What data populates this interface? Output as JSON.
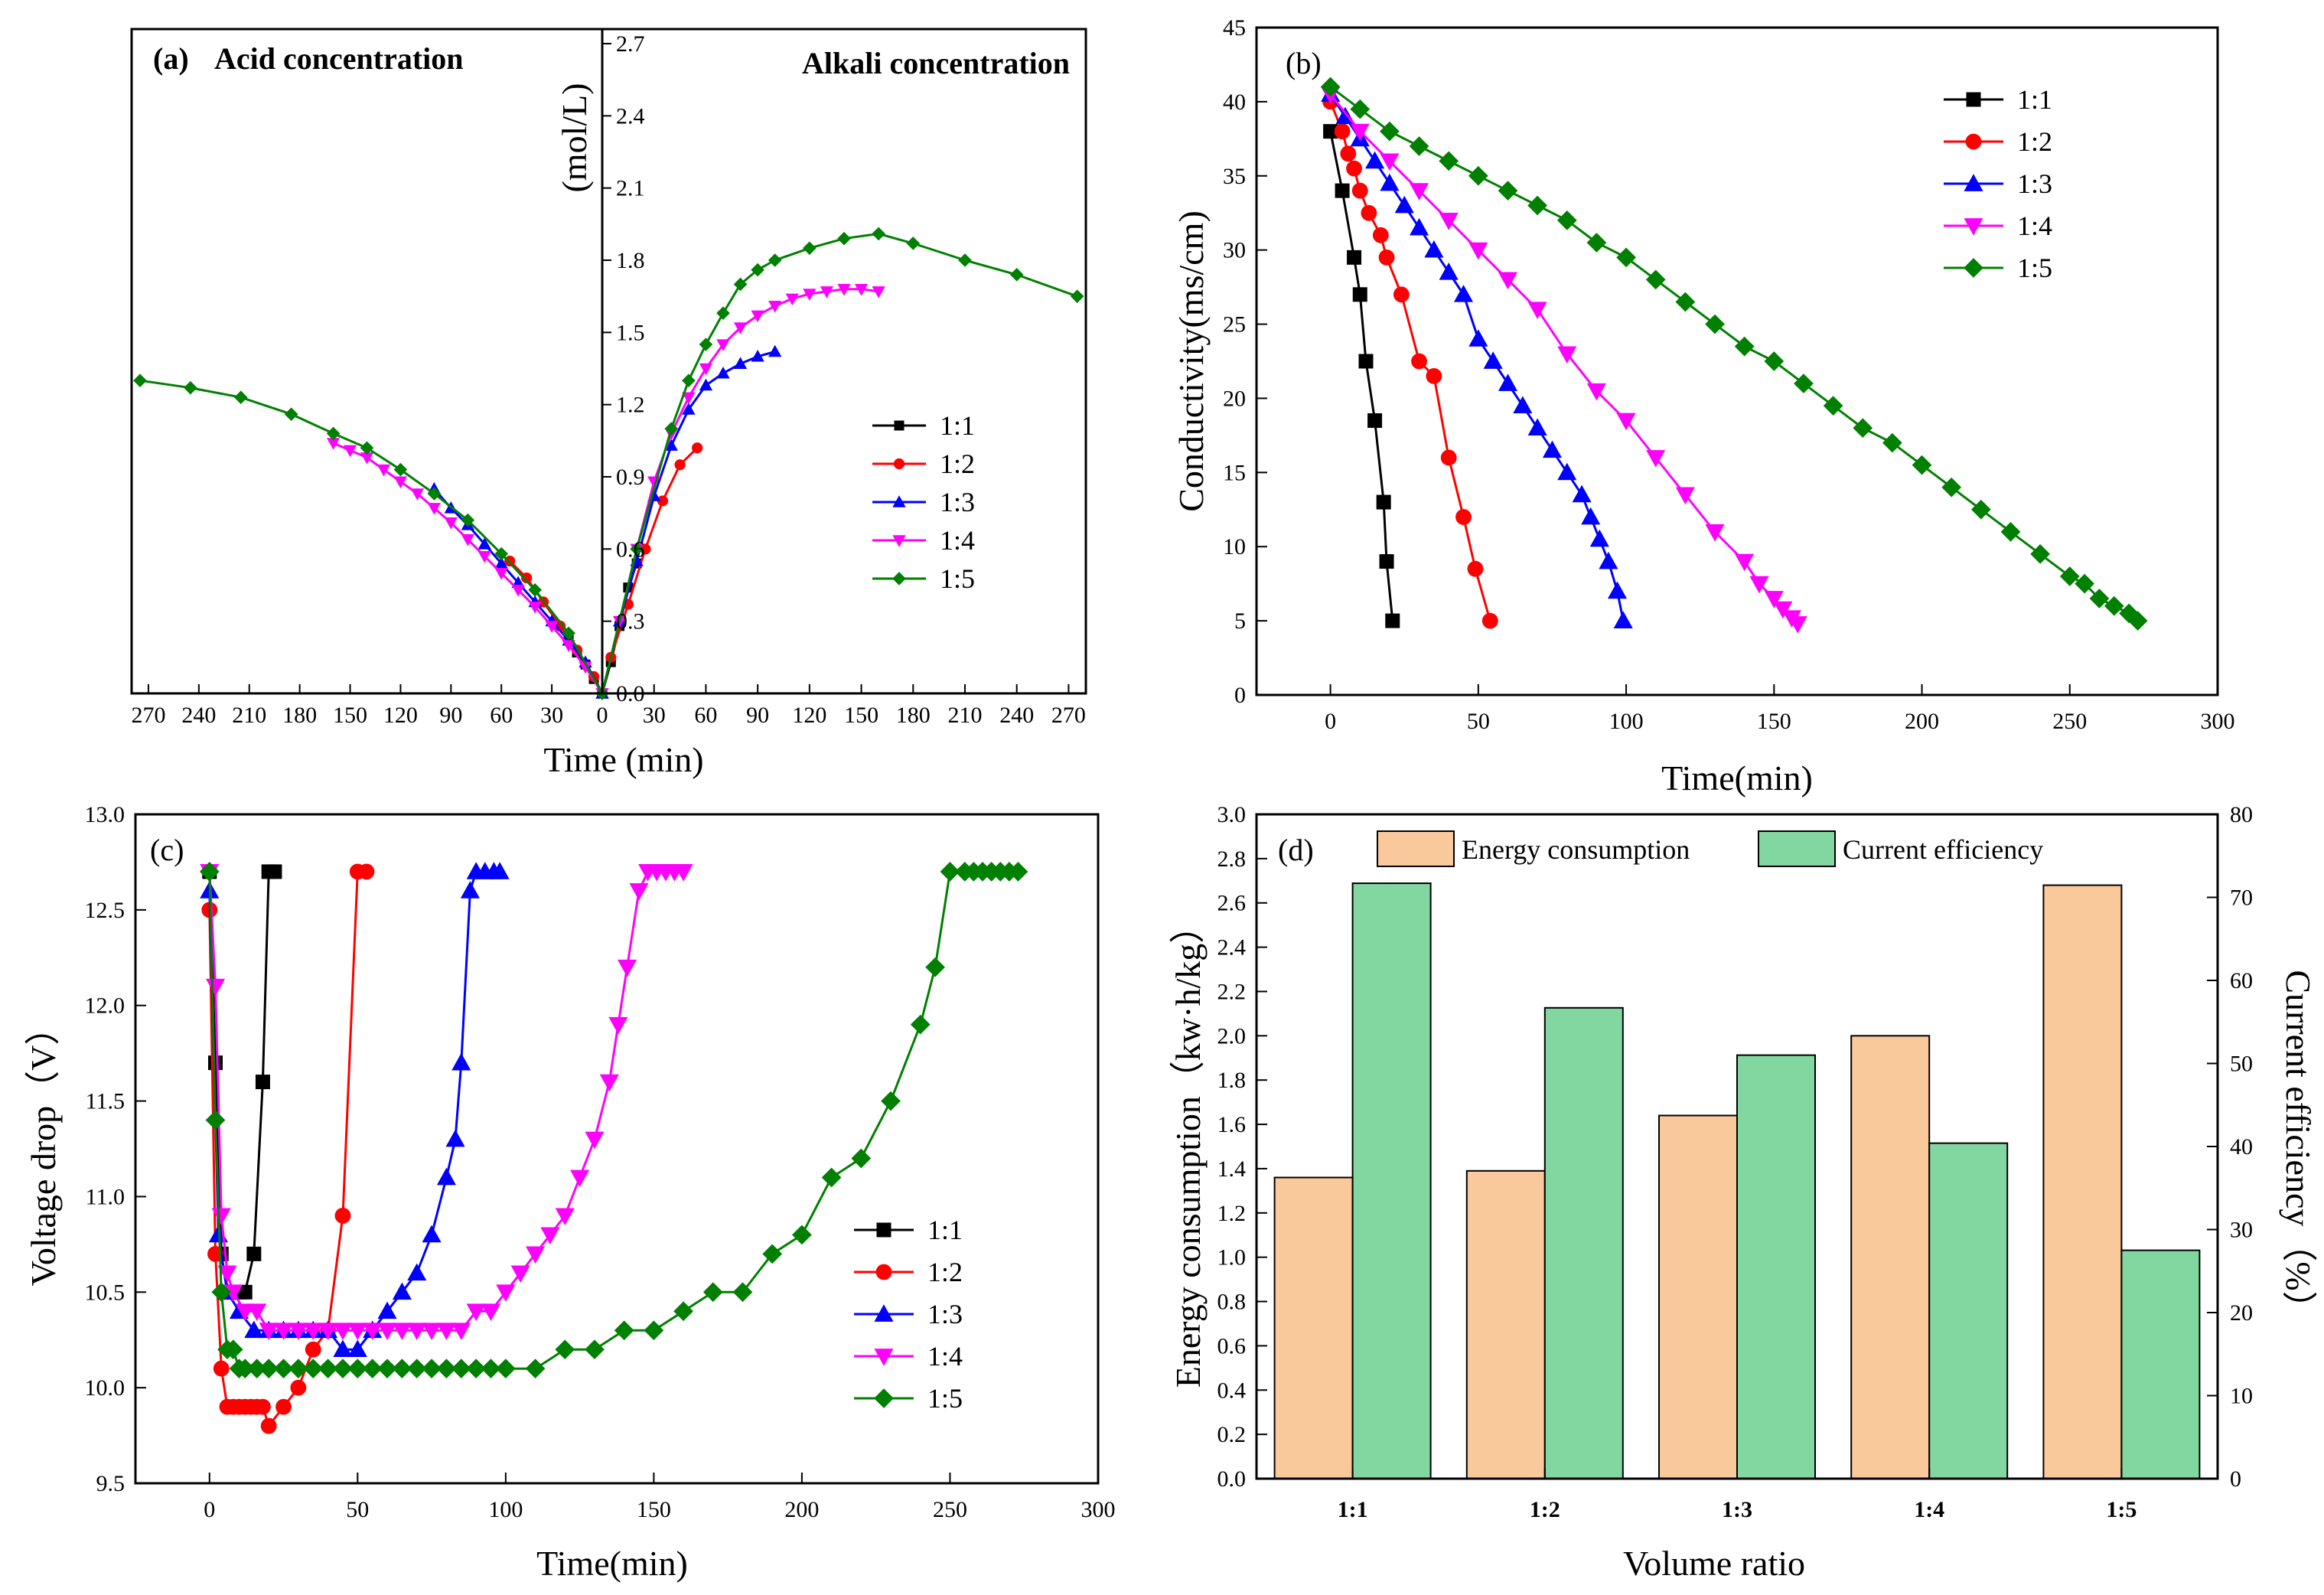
{
  "colors": {
    "1:1": "#000000",
    "1:2": "#ff0000",
    "1:3": "#0000ff",
    "1:4": "#ff00ff",
    "1:5": "#008000",
    "energy": "#f9c89b",
    "efficiency": "#82d6a0"
  },
  "chart_data": [
    {
      "type": "line",
      "panel": "(a)",
      "title_left": "Acid concentration",
      "title_right": "Alkali concentration",
      "xlabel": "Time (min)",
      "ylabel": "(mol/L)",
      "xlim": [
        -280,
        280
      ],
      "ylim": [
        0,
        2.85
      ],
      "x_ticks": [
        270,
        240,
        210,
        180,
        150,
        120,
        90,
        60,
        30,
        0,
        30,
        60,
        90,
        120,
        150,
        180,
        210,
        240,
        270
      ],
      "y_ticks": [
        "0.0",
        "0.3",
        "0.6",
        "0.9",
        "1.2",
        "1.5",
        "1.8",
        "2.1",
        "2.4",
        "2.7"
      ],
      "marker_step": 1,
      "series": [
        {
          "name": "1:1",
          "marker": "square",
          "acid": {
            "t": [
              20,
              15,
              10,
              5,
              0
            ],
            "c": [
              0.23,
              0.17,
              0.12,
              0.06,
              0
            ]
          },
          "alkali": {
            "t": [
              0,
              5,
              10,
              15,
              20
            ],
            "c": [
              0,
              0.13,
              0.28,
              0.44,
              0.54
            ]
          }
        },
        {
          "name": "1:2",
          "marker": "circle",
          "acid": {
            "t": [
              55,
              45,
              35,
              25,
              15,
              5,
              0
            ],
            "c": [
              0.55,
              0.48,
              0.38,
              0.28,
              0.18,
              0.07,
              0
            ]
          },
          "alkali": {
            "t": [
              0,
              5,
              15,
              25,
              35,
              45,
              55
            ],
            "c": [
              0,
              0.15,
              0.37,
              0.6,
              0.8,
              0.95,
              1.02
            ]
          }
        },
        {
          "name": "1:3",
          "marker": "triangle-up",
          "acid": {
            "t": [
              100,
              90,
              80,
              70,
              60,
              50,
              40,
              30,
              20,
              10,
              0
            ],
            "c": [
              0.85,
              0.77,
              0.7,
              0.62,
              0.54,
              0.46,
              0.38,
              0.3,
              0.22,
              0.13,
              0
            ]
          },
          "alkali": {
            "t": [
              0,
              10,
              20,
              30,
              40,
              50,
              60,
              70,
              80,
              90,
              100
            ],
            "c": [
              0,
              0.3,
              0.55,
              0.82,
              1.03,
              1.18,
              1.28,
              1.33,
              1.37,
              1.4,
              1.42
            ]
          }
        },
        {
          "name": "1:4",
          "marker": "triangle-down",
          "acid": {
            "t": [
              160,
              150,
              140,
              130,
              120,
              110,
              100,
              90,
              80,
              70,
              60,
              50,
              40,
              30,
              20,
              10,
              0
            ],
            "c": [
              1.04,
              1.01,
              0.98,
              0.93,
              0.88,
              0.83,
              0.77,
              0.71,
              0.64,
              0.57,
              0.5,
              0.43,
              0.36,
              0.28,
              0.2,
              0.11,
              0
            ]
          },
          "alkali": {
            "t": [
              0,
              10,
              20,
              30,
              40,
              50,
              60,
              70,
              80,
              90,
              100,
              110,
              120,
              130,
              140,
              150,
              160
            ],
            "c": [
              0,
              0.3,
              0.6,
              0.88,
              1.08,
              1.23,
              1.35,
              1.45,
              1.52,
              1.57,
              1.61,
              1.64,
              1.66,
              1.67,
              1.68,
              1.68,
              1.67
            ]
          }
        },
        {
          "name": "1:5",
          "marker": "diamond",
          "acid": {
            "t": [
              275,
              245,
              215,
              185,
              160,
              140,
              120,
              100,
              80,
              60,
              40,
              20,
              0
            ],
            "c": [
              1.3,
              1.27,
              1.23,
              1.16,
              1.08,
              1.02,
              0.93,
              0.83,
              0.72,
              0.58,
              0.43,
              0.25,
              0
            ]
          },
          "alkali": {
            "t": [
              0,
              20,
              40,
              50,
              60,
              70,
              80,
              90,
              100,
              120,
              140,
              160,
              180,
              210,
              240,
              275
            ],
            "c": [
              0,
              0.6,
              1.1,
              1.3,
              1.45,
              1.58,
              1.7,
              1.76,
              1.8,
              1.85,
              1.89,
              1.91,
              1.87,
              1.8,
              1.74,
              1.65
            ]
          }
        }
      ]
    },
    {
      "type": "line",
      "panel": "(b)",
      "xlabel": "Time(min)",
      "ylabel": "Conductivity(ms/cm)",
      "xlim": [
        -25,
        300
      ],
      "ylim": [
        0,
        45
      ],
      "x_ticks": [
        "0",
        "50",
        "100",
        "150",
        "200",
        "250",
        "300"
      ],
      "y_ticks": [
        "0",
        "5",
        "10",
        "15",
        "20",
        "25",
        "30",
        "35",
        "40",
        "45"
      ],
      "series": [
        {
          "name": "1:1",
          "marker": "square",
          "x": [
            0,
            4,
            8,
            10,
            12,
            15,
            18,
            19,
            21
          ],
          "y": [
            38,
            34,
            29.5,
            27,
            22.5,
            18.5,
            13,
            9,
            5
          ]
        },
        {
          "name": "1:2",
          "marker": "circle",
          "x": [
            0,
            4,
            6,
            8,
            10,
            13,
            17,
            19,
            24,
            30,
            35,
            40,
            45,
            49,
            54
          ],
          "y": [
            40,
            38,
            36.5,
            35.5,
            34,
            32.5,
            31,
            29.5,
            27,
            22.5,
            21.5,
            16,
            12,
            8.5,
            5
          ]
        },
        {
          "name": "1:3",
          "marker": "triangle-up",
          "x": [
            0,
            5,
            10,
            15,
            20,
            25,
            30,
            35,
            40,
            45,
            50,
            55,
            60,
            65,
            70,
            75,
            80,
            85,
            88,
            91,
            94,
            97,
            99
          ],
          "y": [
            40.5,
            39,
            37.5,
            36,
            34.5,
            33,
            31.5,
            30,
            28.5,
            27,
            24,
            22.5,
            21,
            19.5,
            18,
            16.5,
            15,
            13.5,
            12,
            10.5,
            9,
            7,
            5
          ]
        },
        {
          "name": "1:4",
          "marker": "triangle-down",
          "x": [
            0,
            10,
            20,
            30,
            40,
            50,
            60,
            70,
            80,
            90,
            100,
            110,
            120,
            130,
            140,
            145,
            150,
            153,
            156,
            158
          ],
          "y": [
            40.5,
            38,
            36,
            34,
            32,
            30,
            28,
            26,
            23,
            20.5,
            18.5,
            16,
            13.5,
            11,
            9,
            7.5,
            6.5,
            5.8,
            5.2,
            4.8
          ]
        },
        {
          "name": "1:5",
          "marker": "diamond",
          "x": [
            0,
            10,
            20,
            30,
            40,
            50,
            60,
            70,
            80,
            90,
            100,
            110,
            120,
            130,
            140,
            150,
            160,
            170,
            180,
            190,
            200,
            210,
            220,
            230,
            240,
            250,
            255,
            260,
            265,
            270,
            273
          ],
          "y": [
            41,
            39.5,
            38,
            37,
            36,
            35,
            34,
            33,
            32,
            30.5,
            29.5,
            28,
            26.5,
            25,
            23.5,
            22.5,
            21,
            19.5,
            18,
            17,
            15.5,
            14,
            12.5,
            11,
            9.5,
            8,
            7.5,
            6.5,
            6,
            5.5,
            5
          ]
        }
      ]
    },
    {
      "type": "line",
      "panel": "(c)",
      "xlabel": "Time(min)",
      "ylabel": "Voltage drop（V）",
      "xlim": [
        -25,
        300
      ],
      "ylim": [
        9.5,
        13.0
      ],
      "x_ticks": [
        "0",
        "50",
        "100",
        "150",
        "200",
        "250",
        "300"
      ],
      "y_ticks": [
        "9.5",
        "10.0",
        "10.5",
        "11.0",
        "11.5",
        "12.0",
        "12.5",
        "13.0"
      ],
      "series": [
        {
          "name": "1:1",
          "marker": "square",
          "x": [
            0,
            2,
            4,
            6,
            8,
            10,
            12,
            15,
            18,
            20,
            22
          ],
          "y": [
            12.7,
            11.7,
            10.7,
            10.5,
            10.5,
            10.5,
            10.5,
            10.7,
            11.6,
            12.7,
            12.7
          ]
        },
        {
          "name": "1:2",
          "marker": "circle",
          "x": [
            0,
            2,
            4,
            6,
            8,
            10,
            12,
            14,
            16,
            18,
            20,
            25,
            30,
            35,
            40,
            45,
            50,
            53
          ],
          "y": [
            12.5,
            10.7,
            10.1,
            9.9,
            9.9,
            9.9,
            9.9,
            9.9,
            9.9,
            9.9,
            9.8,
            9.9,
            10.0,
            10.2,
            10.3,
            10.9,
            12.7,
            12.7
          ]
        },
        {
          "name": "1:3",
          "marker": "triangle-up",
          "x": [
            0,
            3,
            6,
            10,
            15,
            20,
            25,
            30,
            35,
            40,
            45,
            50,
            55,
            60,
            65,
            70,
            75,
            80,
            83,
            85,
            88,
            90,
            93,
            96,
            98
          ],
          "y": [
            12.6,
            10.8,
            10.5,
            10.4,
            10.3,
            10.3,
            10.3,
            10.3,
            10.3,
            10.3,
            10.2,
            10.2,
            10.3,
            10.4,
            10.5,
            10.6,
            10.8,
            11.1,
            11.3,
            11.7,
            12.6,
            12.7,
            12.7,
            12.7,
            12.7
          ]
        },
        {
          "name": "1:4",
          "marker": "triangle-down",
          "x": [
            0,
            2,
            4,
            6,
            8,
            12,
            16,
            20,
            25,
            30,
            35,
            40,
            45,
            50,
            55,
            60,
            65,
            70,
            75,
            80,
            85,
            90,
            95,
            100,
            105,
            110,
            115,
            120,
            125,
            130,
            135,
            138,
            141,
            145,
            148,
            151,
            154,
            157,
            160
          ],
          "y": [
            12.7,
            12.1,
            10.9,
            10.6,
            10.5,
            10.4,
            10.4,
            10.3,
            10.3,
            10.3,
            10.3,
            10.3,
            10.3,
            10.3,
            10.3,
            10.3,
            10.3,
            10.3,
            10.3,
            10.3,
            10.3,
            10.4,
            10.4,
            10.5,
            10.6,
            10.7,
            10.8,
            10.9,
            11.1,
            11.3,
            11.6,
            11.9,
            12.2,
            12.6,
            12.7,
            12.7,
            12.7,
            12.7,
            12.7
          ]
        },
        {
          "name": "1:5",
          "marker": "diamond",
          "x": [
            0,
            2,
            4,
            6,
            8,
            10,
            12,
            16,
            20,
            25,
            30,
            35,
            40,
            45,
            50,
            55,
            60,
            65,
            70,
            75,
            80,
            85,
            90,
            95,
            100,
            110,
            120,
            130,
            140,
            150,
            160,
            170,
            180,
            190,
            200,
            210,
            220,
            230,
            240,
            245,
            250,
            255,
            258,
            261,
            264,
            267,
            270,
            273
          ],
          "y": [
            12.7,
            11.4,
            10.5,
            10.2,
            10.2,
            10.1,
            10.1,
            10.1,
            10.1,
            10.1,
            10.1,
            10.1,
            10.1,
            10.1,
            10.1,
            10.1,
            10.1,
            10.1,
            10.1,
            10.1,
            10.1,
            10.1,
            10.1,
            10.1,
            10.1,
            10.1,
            10.2,
            10.2,
            10.3,
            10.3,
            10.4,
            10.5,
            10.5,
            10.7,
            10.8,
            11.1,
            11.2,
            11.5,
            11.9,
            12.2,
            12.7,
            12.7,
            12.7,
            12.7,
            12.7,
            12.7,
            12.7,
            12.7
          ]
        }
      ]
    },
    {
      "type": "bar",
      "panel": "(d)",
      "xlabel": "Volume ratio",
      "ylabel": "Energy consumption（kw·h/kg）",
      "ylabel_right": "Current efficiency（%）",
      "categories": [
        "1:1",
        "1:2",
        "1:3",
        "1:4",
        "1:5"
      ],
      "ylim": [
        0,
        3.0
      ],
      "ylim_right": [
        0,
        80
      ],
      "y_ticks": [
        "0.0",
        "0.2",
        "0.4",
        "0.6",
        "0.8",
        "1.0",
        "1.2",
        "1.4",
        "1.6",
        "1.8",
        "2.0",
        "2.2",
        "2.4",
        "2.6",
        "2.8",
        "3.0"
      ],
      "y_ticks_right": [
        "0",
        "10",
        "20",
        "30",
        "40",
        "50",
        "60",
        "70",
        "80"
      ],
      "series": [
        {
          "name": "Energy consumption",
          "axis": "left",
          "values": [
            1.36,
            1.39,
            1.64,
            2.0,
            2.68
          ]
        },
        {
          "name": "Current efficiency",
          "axis": "right",
          "values": [
            71.7,
            56.7,
            51,
            40.4,
            27.5
          ]
        }
      ]
    }
  ]
}
